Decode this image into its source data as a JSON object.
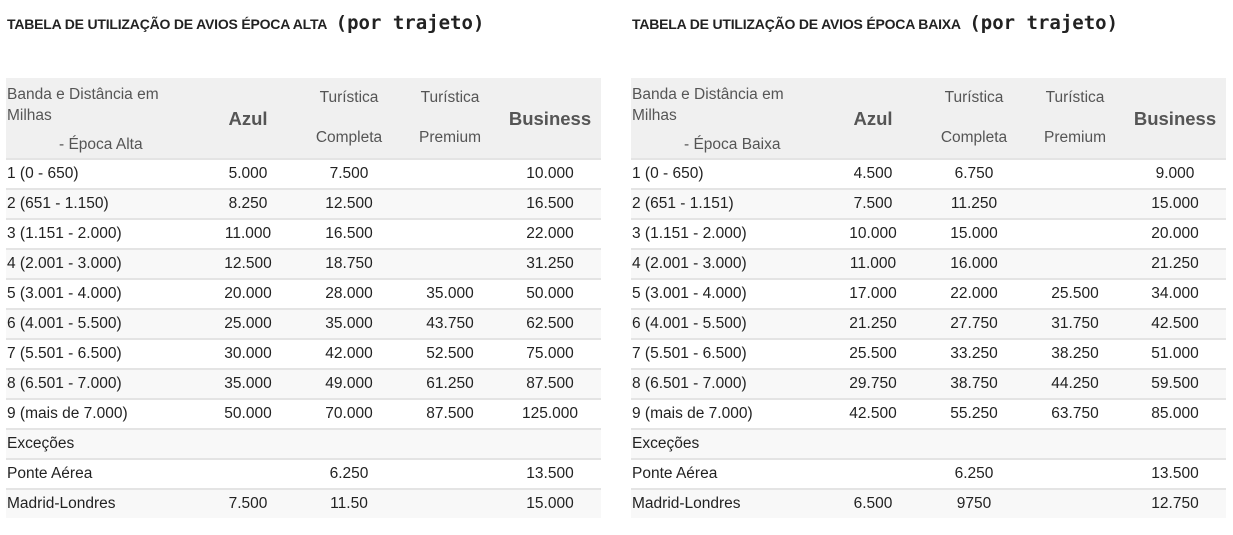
{
  "tables": [
    {
      "title": "TABELA DE UTILIZAÇÃO DE AVIOS ÉPOCA ALTA",
      "subtitle": "(por trajeto)",
      "header": {
        "band_line1": "Banda e Distância em",
        "band_line2": "Milhas",
        "season": "- Época Alta",
        "azul": "Azul",
        "tc_line1": "Turística",
        "tc_line2": "Completa",
        "tp_line1": "Turística",
        "tp_line2": "Premium",
        "business": "Business"
      },
      "rows": [
        {
          "band": "1 (0 - 650)",
          "azul": "5.000",
          "completa": "7.500",
          "premium": "",
          "business": "10.000"
        },
        {
          "band": "2 (651 - 1.150)",
          "azul": "8.250",
          "completa": "12.500",
          "premium": "",
          "business": "16.500"
        },
        {
          "band": "3 (1.151 - 2.000)",
          "azul": "11.000",
          "completa": "16.500",
          "premium": "",
          "business": "22.000"
        },
        {
          "band": "4 (2.001 - 3.000)",
          "azul": "12.500",
          "completa": "18.750",
          "premium": "",
          "business": "31.250"
        },
        {
          "band": "5 (3.001 - 4.000)",
          "azul": "20.000",
          "completa": "28.000",
          "premium": "35.000",
          "business": "50.000"
        },
        {
          "band": "6 (4.001 - 5.500)",
          "azul": "25.000",
          "completa": "35.000",
          "premium": "43.750",
          "business": "62.500"
        },
        {
          "band": "7 (5.501 - 6.500)",
          "azul": "30.000",
          "completa": "42.000",
          "premium": "52.500",
          "business": "75.000"
        },
        {
          "band": "8 (6.501 - 7.000)",
          "azul": "35.000",
          "completa": "49.000",
          "premium": "61.250",
          "business": "87.500"
        },
        {
          "band": "9 (mais de 7.000)",
          "azul": "50.000",
          "completa": "70.000",
          "premium": "87.500",
          "business": "125.000"
        },
        {
          "band": "Exceções",
          "azul": "",
          "completa": "",
          "premium": "",
          "business": ""
        },
        {
          "band": "Ponte Aérea",
          "azul": "",
          "completa": "6.250",
          "premium": "",
          "business": "13.500"
        },
        {
          "band": "Madrid-Londres",
          "azul": "7.500",
          "completa": "11.50",
          "premium": "",
          "business": "15.000"
        }
      ]
    },
    {
      "title": "TABELA DE UTILIZAÇÃO DE AVIOS ÉPOCA BAIXA",
      "subtitle": "(por trajeto)",
      "header": {
        "band_line1": "Banda e Distância em",
        "band_line2": "Milhas",
        "season": "- Época Baixa",
        "azul": "Azul",
        "tc_line1": "Turística",
        "tc_line2": "Completa",
        "tp_line1": "Turística",
        "tp_line2": "Premium",
        "business": "Business"
      },
      "rows": [
        {
          "band": "1 (0 - 650)",
          "azul": "4.500",
          "completa": "6.750",
          "premium": "",
          "business": "9.000"
        },
        {
          "band": "2 (651 - 1.151)",
          "azul": "7.500",
          "completa": "11.250",
          "premium": "",
          "business": "15.000"
        },
        {
          "band": "3 (1.151 - 2.000)",
          "azul": "10.000",
          "completa": "15.000",
          "premium": "",
          "business": "20.000"
        },
        {
          "band": "4 (2.001 - 3.000)",
          "azul": "11.000",
          "completa": "16.000",
          "premium": "",
          "business": "21.250"
        },
        {
          "band": "5 (3.001 - 4.000)",
          "azul": "17.000",
          "completa": "22.000",
          "premium": "25.500",
          "business": "34.000"
        },
        {
          "band": "6 (4.001 - 5.500)",
          "azul": "21.250",
          "completa": "27.750",
          "premium": "31.750",
          "business": "42.500"
        },
        {
          "band": "7 (5.501 - 6.500)",
          "azul": "25.500",
          "completa": "33.250",
          "premium": "38.250",
          "business": "51.000"
        },
        {
          "band": "8 (6.501 - 7.000)",
          "azul": "29.750",
          "completa": "38.750",
          "premium": "44.250",
          "business": "59.500"
        },
        {
          "band": "9 (mais de 7.000)",
          "azul": "42.500",
          "completa": "55.250",
          "premium": "63.750",
          "business": "85.000"
        },
        {
          "band": "Exceções",
          "azul": "",
          "completa": "",
          "premium": "",
          "business": ""
        },
        {
          "band": "Ponte Aérea",
          "azul": "",
          "completa": "6.250",
          "premium": "",
          "business": "13.500"
        },
        {
          "band": "Madrid-Londres",
          "azul": "6.500",
          "completa": "9750",
          "premium": "",
          "business": "12.750"
        }
      ]
    }
  ]
}
